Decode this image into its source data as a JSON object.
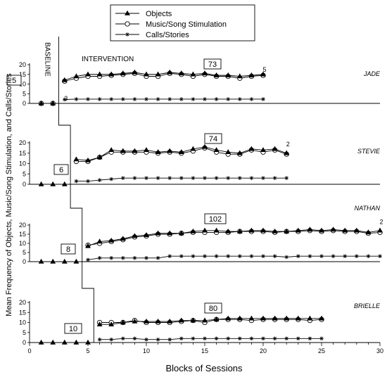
{
  "chart_data": {
    "type": "line",
    "xlabel": "Blocks of Sessions",
    "ylabel": "Mean Frequency of Objects, Music/Song Stimulation, and Calls/Stories",
    "xlim": [
      0,
      30
    ],
    "xticks": [
      0,
      5,
      10,
      15,
      20,
      25,
      30
    ],
    "ylim": [
      0,
      20
    ],
    "yticks": [
      0,
      5,
      10,
      15,
      20
    ],
    "legend": {
      "placement": "top-center",
      "entries": [
        {
          "name": "Objects",
          "marker": "triangle"
        },
        {
          "name": "Music/Song Stimulation",
          "marker": "circle"
        },
        {
          "name": "Calls/Stories",
          "marker": "asterisk"
        }
      ]
    },
    "phase_labels": {
      "baseline": "BASELINE",
      "intervention": "INTERVENTION"
    },
    "panels": [
      {
        "name": "JADE",
        "baseline_box": "5",
        "intervention_box": "73",
        "annotations": [
          {
            "text": "3",
            "x": 3,
            "y": 0
          },
          {
            "text": "5",
            "x": 20,
            "y": 15
          }
        ],
        "phase_change_after": 2.5,
        "series": [
          {
            "name": "Objects",
            "x": [
              1,
              2,
              3,
              4,
              5,
              6,
              7,
              8,
              9,
              10,
              11,
              12,
              13,
              14,
              15,
              16,
              17,
              18,
              19,
              20
            ],
            "values": [
              0,
              0,
              12,
              14,
              15,
              15,
              15,
              15.5,
              16,
              15,
              15,
              16,
              15.5,
              15,
              15.5,
              14.5,
              14.5,
              14,
              14.5,
              15
            ]
          },
          {
            "name": "Music/Song Stimulation",
            "x": [
              1,
              2,
              3,
              4,
              5,
              6,
              7,
              8,
              9,
              10,
              11,
              12,
              13,
              14,
              15,
              16,
              17,
              18,
              19,
              20
            ],
            "values": [
              0,
              0,
              11.5,
              13,
              14,
              14,
              14.5,
              15,
              15.5,
              14,
              14,
              15.5,
              15,
              14,
              15,
              14,
              14,
              13,
              14,
              14.5
            ]
          },
          {
            "name": "Calls/Stories",
            "x": [
              3,
              4,
              5,
              6,
              7,
              8,
              9,
              10,
              11,
              12,
              13,
              14,
              15,
              16,
              17,
              18,
              19,
              20
            ],
            "values": [
              2,
              2.2,
              2.2,
              2.2,
              2.2,
              2.2,
              2.2,
              2.2,
              2.2,
              2.2,
              2.2,
              2.2,
              2.2,
              2.2,
              2.2,
              2.2,
              2.2,
              2.2
            ]
          }
        ]
      },
      {
        "name": "STEVIE",
        "baseline_box": "6",
        "intervention_box": "74",
        "annotations": [
          {
            "text": "2",
            "x": 22,
            "y": 17
          }
        ],
        "phase_change_after": 3.5,
        "series": [
          {
            "name": "Objects",
            "x": [
              1,
              2,
              3,
              4,
              5,
              6,
              7,
              8,
              9,
              10,
              11,
              12,
              13,
              14,
              15,
              16,
              17,
              18,
              19,
              20,
              21,
              22
            ],
            "values": [
              0,
              0,
              0,
              12,
              11.5,
              13,
              16.5,
              16,
              16,
              16.5,
              15.5,
              16,
              15.5,
              17,
              18,
              16.5,
              15.5,
              15,
              17,
              16.5,
              17,
              15
            ]
          },
          {
            "name": "Music/Song Stimulation",
            "x": [
              4,
              5,
              6,
              7,
              8,
              9,
              10,
              11,
              12,
              13,
              14,
              15,
              16,
              17,
              18,
              19,
              20,
              21,
              22
            ],
            "values": [
              11,
              11,
              13,
              15.5,
              15.5,
              15.5,
              15.5,
              15,
              15.5,
              15,
              16,
              17.5,
              15.5,
              14.5,
              14.5,
              16.5,
              15.5,
              16.5,
              14.5
            ]
          },
          {
            "name": "Calls/Stories",
            "x": [
              4,
              5,
              6,
              7,
              8,
              9,
              10,
              11,
              12,
              13,
              14,
              15,
              16,
              17,
              18,
              19,
              20,
              21,
              22
            ],
            "values": [
              1.5,
              1.5,
              2,
              2.5,
              3,
              3,
              3,
              3,
              3,
              3,
              3,
              3,
              3,
              3,
              3,
              3,
              3,
              3,
              3
            ]
          }
        ]
      },
      {
        "name": "NATHAN",
        "baseline_box": "8",
        "intervention_box": "102",
        "annotations": [
          {
            "text": "2",
            "x": 30,
            "y": 19
          }
        ],
        "phase_change_after": 4.5,
        "series": [
          {
            "name": "Objects",
            "x": [
              1,
              2,
              3,
              4,
              5,
              6,
              7,
              8,
              9,
              10,
              11,
              12,
              13,
              14,
              15,
              16,
              17,
              18,
              19,
              20,
              21,
              22,
              23,
              24,
              25,
              26,
              27,
              28,
              29,
              30
            ],
            "values": [
              0,
              0,
              0,
              0,
              8.5,
              11,
              11.5,
              12.5,
              14,
              14.5,
              15.5,
              15.5,
              15.5,
              16.5,
              17,
              17,
              16.5,
              16.5,
              17,
              17,
              16.5,
              16.5,
              17,
              17.5,
              17,
              17.5,
              17,
              17,
              16,
              17
            ]
          },
          {
            "name": "Music/Song Stimulation",
            "x": [
              5,
              6,
              7,
              8,
              9,
              10,
              11,
              12,
              13,
              14,
              15,
              16,
              17,
              18,
              19,
              20,
              21,
              22,
              23,
              24,
              25,
              26,
              27,
              28,
              29,
              30
            ],
            "values": [
              9,
              10,
              11,
              12,
              13.5,
              14,
              15,
              15,
              15.5,
              16,
              16,
              16,
              16,
              16.5,
              16.5,
              16.5,
              16,
              16.5,
              16.5,
              17,
              16.5,
              17,
              16.5,
              16.5,
              15.5,
              16
            ]
          },
          {
            "name": "Calls/Stories",
            "x": [
              5,
              6,
              7,
              8,
              9,
              10,
              11,
              12,
              13,
              14,
              15,
              16,
              17,
              18,
              19,
              20,
              21,
              22,
              23,
              24,
              25,
              26,
              27,
              28,
              29,
              30
            ],
            "values": [
              1,
              2,
              2,
              2,
              2,
              2,
              2,
              3,
              3,
              3,
              3,
              3,
              3,
              3,
              3,
              3,
              3,
              2.5,
              3,
              3,
              3,
              3,
              3,
              3,
              3,
              3
            ]
          }
        ]
      },
      {
        "name": "BRIELLE",
        "baseline_box": "10",
        "intervention_box": "80",
        "annotations": [],
        "phase_change_after": 5.5,
        "series": [
          {
            "name": "Objects",
            "x": [
              1,
              2,
              3,
              4,
              5,
              6,
              7,
              8,
              9,
              10,
              11,
              12,
              13,
              14,
              15,
              16,
              17,
              18,
              19,
              20,
              21,
              22,
              23,
              24,
              25
            ],
            "values": [
              0,
              0,
              0,
              0,
              0,
              9,
              9,
              10,
              10.5,
              10.5,
              10.5,
              10.5,
              11,
              11,
              11,
              11.5,
              12,
              12,
              12,
              12,
              12,
              12,
              12,
              12,
              12
            ]
          },
          {
            "name": "Music/Song Stimulation",
            "x": [
              6,
              7,
              8,
              9,
              10,
              11,
              12,
              13,
              14,
              15,
              16,
              17,
              18,
              19,
              20,
              21,
              22,
              23,
              24,
              25
            ],
            "values": [
              10,
              10,
              10,
              11,
              10,
              10,
              10,
              10.5,
              11,
              10,
              11.5,
              11.5,
              11.5,
              11,
              11.5,
              11.5,
              11.5,
              11.5,
              11,
              11.5
            ]
          },
          {
            "name": "Calls/Stories",
            "x": [
              6,
              7,
              8,
              9,
              10,
              11,
              12,
              13,
              14,
              15,
              16,
              17,
              18,
              19,
              20,
              21,
              22,
              23,
              24,
              25
            ],
            "values": [
              1.5,
              1.5,
              2,
              2,
              1.5,
              1.5,
              1.5,
              2,
              2,
              2,
              2,
              2,
              2,
              2,
              2,
              2,
              2,
              2,
              2,
              2
            ]
          }
        ]
      }
    ]
  }
}
